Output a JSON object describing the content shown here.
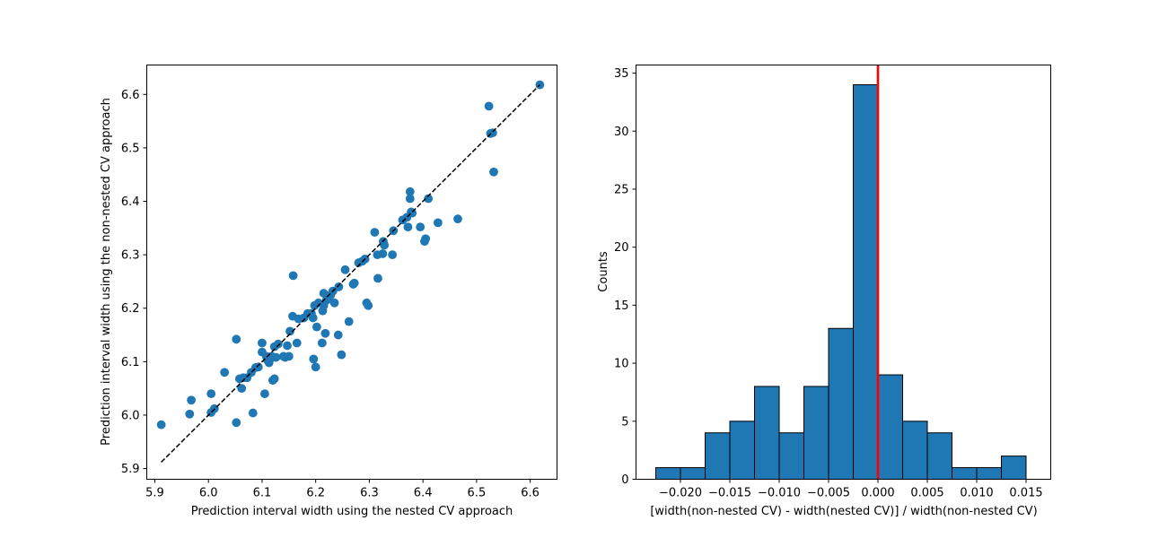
{
  "chart_data": [
    {
      "type": "scatter",
      "xlabel": "Prediction interval width using the nested CV approach",
      "ylabel": "Prediction interval width using the non-nested CV approach",
      "xlim": [
        5.885,
        6.65
      ],
      "ylim": [
        5.88,
        6.655
      ],
      "xticks": [
        "5.9",
        "6.0",
        "6.1",
        "6.2",
        "6.3",
        "6.4",
        "6.5",
        "6.6"
      ],
      "yticks": [
        "5.9",
        "6.0",
        "6.1",
        "6.2",
        "6.3",
        "6.4",
        "6.5",
        "6.6"
      ],
      "grid": false,
      "marker_color": "#1f77b4",
      "reference_line": {
        "style": "dashed",
        "color": "#000000",
        "from": [
          5.912,
          5.912
        ],
        "to": [
          6.618,
          6.618
        ]
      },
      "points": [
        [
          5.912,
          5.982
        ],
        [
          5.965,
          6.002
        ],
        [
          5.968,
          6.028
        ],
        [
          6.005,
          6.005
        ],
        [
          6.005,
          6.04
        ],
        [
          6.011,
          6.012
        ],
        [
          6.03,
          6.08
        ],
        [
          6.052,
          5.986
        ],
        [
          6.052,
          6.142
        ],
        [
          6.058,
          6.068
        ],
        [
          6.062,
          6.05
        ],
        [
          6.065,
          6.07
        ],
        [
          6.072,
          6.07
        ],
        [
          6.08,
          6.08
        ],
        [
          6.083,
          6.004
        ],
        [
          6.088,
          6.089
        ],
        [
          6.093,
          6.09
        ],
        [
          6.1,
          6.135
        ],
        [
          6.1,
          6.118
        ],
        [
          6.105,
          6.04
        ],
        [
          6.108,
          6.11
        ],
        [
          6.11,
          6.103
        ],
        [
          6.113,
          6.098
        ],
        [
          6.115,
          6.105
        ],
        [
          6.118,
          6.11
        ],
        [
          6.12,
          6.065
        ],
        [
          6.123,
          6.068
        ],
        [
          6.123,
          6.128
        ],
        [
          6.126,
          6.108
        ],
        [
          6.13,
          6.133
        ],
        [
          6.14,
          6.11
        ],
        [
          6.143,
          6.108
        ],
        [
          6.147,
          6.13
        ],
        [
          6.15,
          6.11
        ],
        [
          6.152,
          6.157
        ],
        [
          6.157,
          6.185
        ],
        [
          6.158,
          6.261
        ],
        [
          6.165,
          6.135
        ],
        [
          6.168,
          6.18
        ],
        [
          6.178,
          6.182
        ],
        [
          6.185,
          6.19
        ],
        [
          6.192,
          6.19
        ],
        [
          6.195,
          6.182
        ],
        [
          6.196,
          6.105
        ],
        [
          6.198,
          6.205
        ],
        [
          6.2,
          6.09
        ],
        [
          6.202,
          6.165
        ],
        [
          6.205,
          6.21
        ],
        [
          6.212,
          6.135
        ],
        [
          6.213,
          6.195
        ],
        [
          6.215,
          6.228
        ],
        [
          6.215,
          6.205
        ],
        [
          6.218,
          6.153
        ],
        [
          6.22,
          6.215
        ],
        [
          6.225,
          6.218
        ],
        [
          6.228,
          6.225
        ],
        [
          6.232,
          6.232
        ],
        [
          6.235,
          6.21
        ],
        [
          6.242,
          6.15
        ],
        [
          6.243,
          6.24
        ],
        [
          6.248,
          6.113
        ],
        [
          6.255,
          6.272
        ],
        [
          6.262,
          6.175
        ],
        [
          6.27,
          6.245
        ],
        [
          6.272,
          6.247
        ],
        [
          6.28,
          6.285
        ],
        [
          6.287,
          6.288
        ],
        [
          6.292,
          6.292
        ],
        [
          6.295,
          6.21
        ],
        [
          6.298,
          6.205
        ],
        [
          6.31,
          6.342
        ],
        [
          6.315,
          6.3
        ],
        [
          6.316,
          6.256
        ],
        [
          6.325,
          6.302
        ],
        [
          6.326,
          6.325
        ],
        [
          6.328,
          6.318
        ],
        [
          6.343,
          6.3
        ],
        [
          6.345,
          6.345
        ],
        [
          6.362,
          6.365
        ],
        [
          6.37,
          6.37
        ],
        [
          6.372,
          6.352
        ],
        [
          6.376,
          6.418
        ],
        [
          6.376,
          6.405
        ],
        [
          6.378,
          6.38
        ],
        [
          6.38,
          6.378
        ],
        [
          6.395,
          6.352
        ],
        [
          6.403,
          6.325
        ],
        [
          6.405,
          6.33
        ],
        [
          6.41,
          6.405
        ],
        [
          6.428,
          6.36
        ],
        [
          6.465,
          6.367
        ],
        [
          6.523,
          6.578
        ],
        [
          6.526,
          6.527
        ],
        [
          6.53,
          6.528
        ],
        [
          6.532,
          6.455
        ],
        [
          6.618,
          6.618
        ]
      ]
    },
    {
      "type": "bar",
      "histogram": true,
      "xlabel": "[width(non-nested CV) - width(nested CV)] / width(non-nested CV)",
      "ylabel": "Counts",
      "xlim": [
        -0.0245,
        0.0175
      ],
      "ylim": [
        0,
        35.7
      ],
      "xticks": [
        -0.02,
        -0.015,
        -0.01,
        -0.005,
        0.0,
        0.005,
        0.01,
        0.015
      ],
      "xtick_labels": [
        "−0.020",
        "−0.015",
        "−0.010",
        "−0.005",
        "0.000",
        "0.005",
        "0.010",
        "0.015"
      ],
      "yticks": [
        0,
        5,
        10,
        15,
        20,
        25,
        30,
        35
      ],
      "ytick_labels": [
        "0",
        "5",
        "10",
        "15",
        "20",
        "25",
        "30",
        "35"
      ],
      "grid": false,
      "bar_color": "#1f77b4",
      "edge_color": "#000000",
      "bin_edges": [
        -0.0225,
        -0.02,
        -0.0175,
        -0.015,
        -0.0125,
        -0.01,
        -0.0075,
        -0.005,
        -0.0025,
        0.0,
        0.0025,
        0.005,
        0.0075,
        0.01,
        0.0125,
        0.015
      ],
      "counts": [
        1,
        1,
        4,
        5,
        8,
        4,
        8,
        13,
        34,
        9,
        5,
        4,
        1,
        1,
        2
      ],
      "reference_line": {
        "orientation": "vertical",
        "x": 0.0,
        "color": "#ff0000"
      }
    }
  ]
}
